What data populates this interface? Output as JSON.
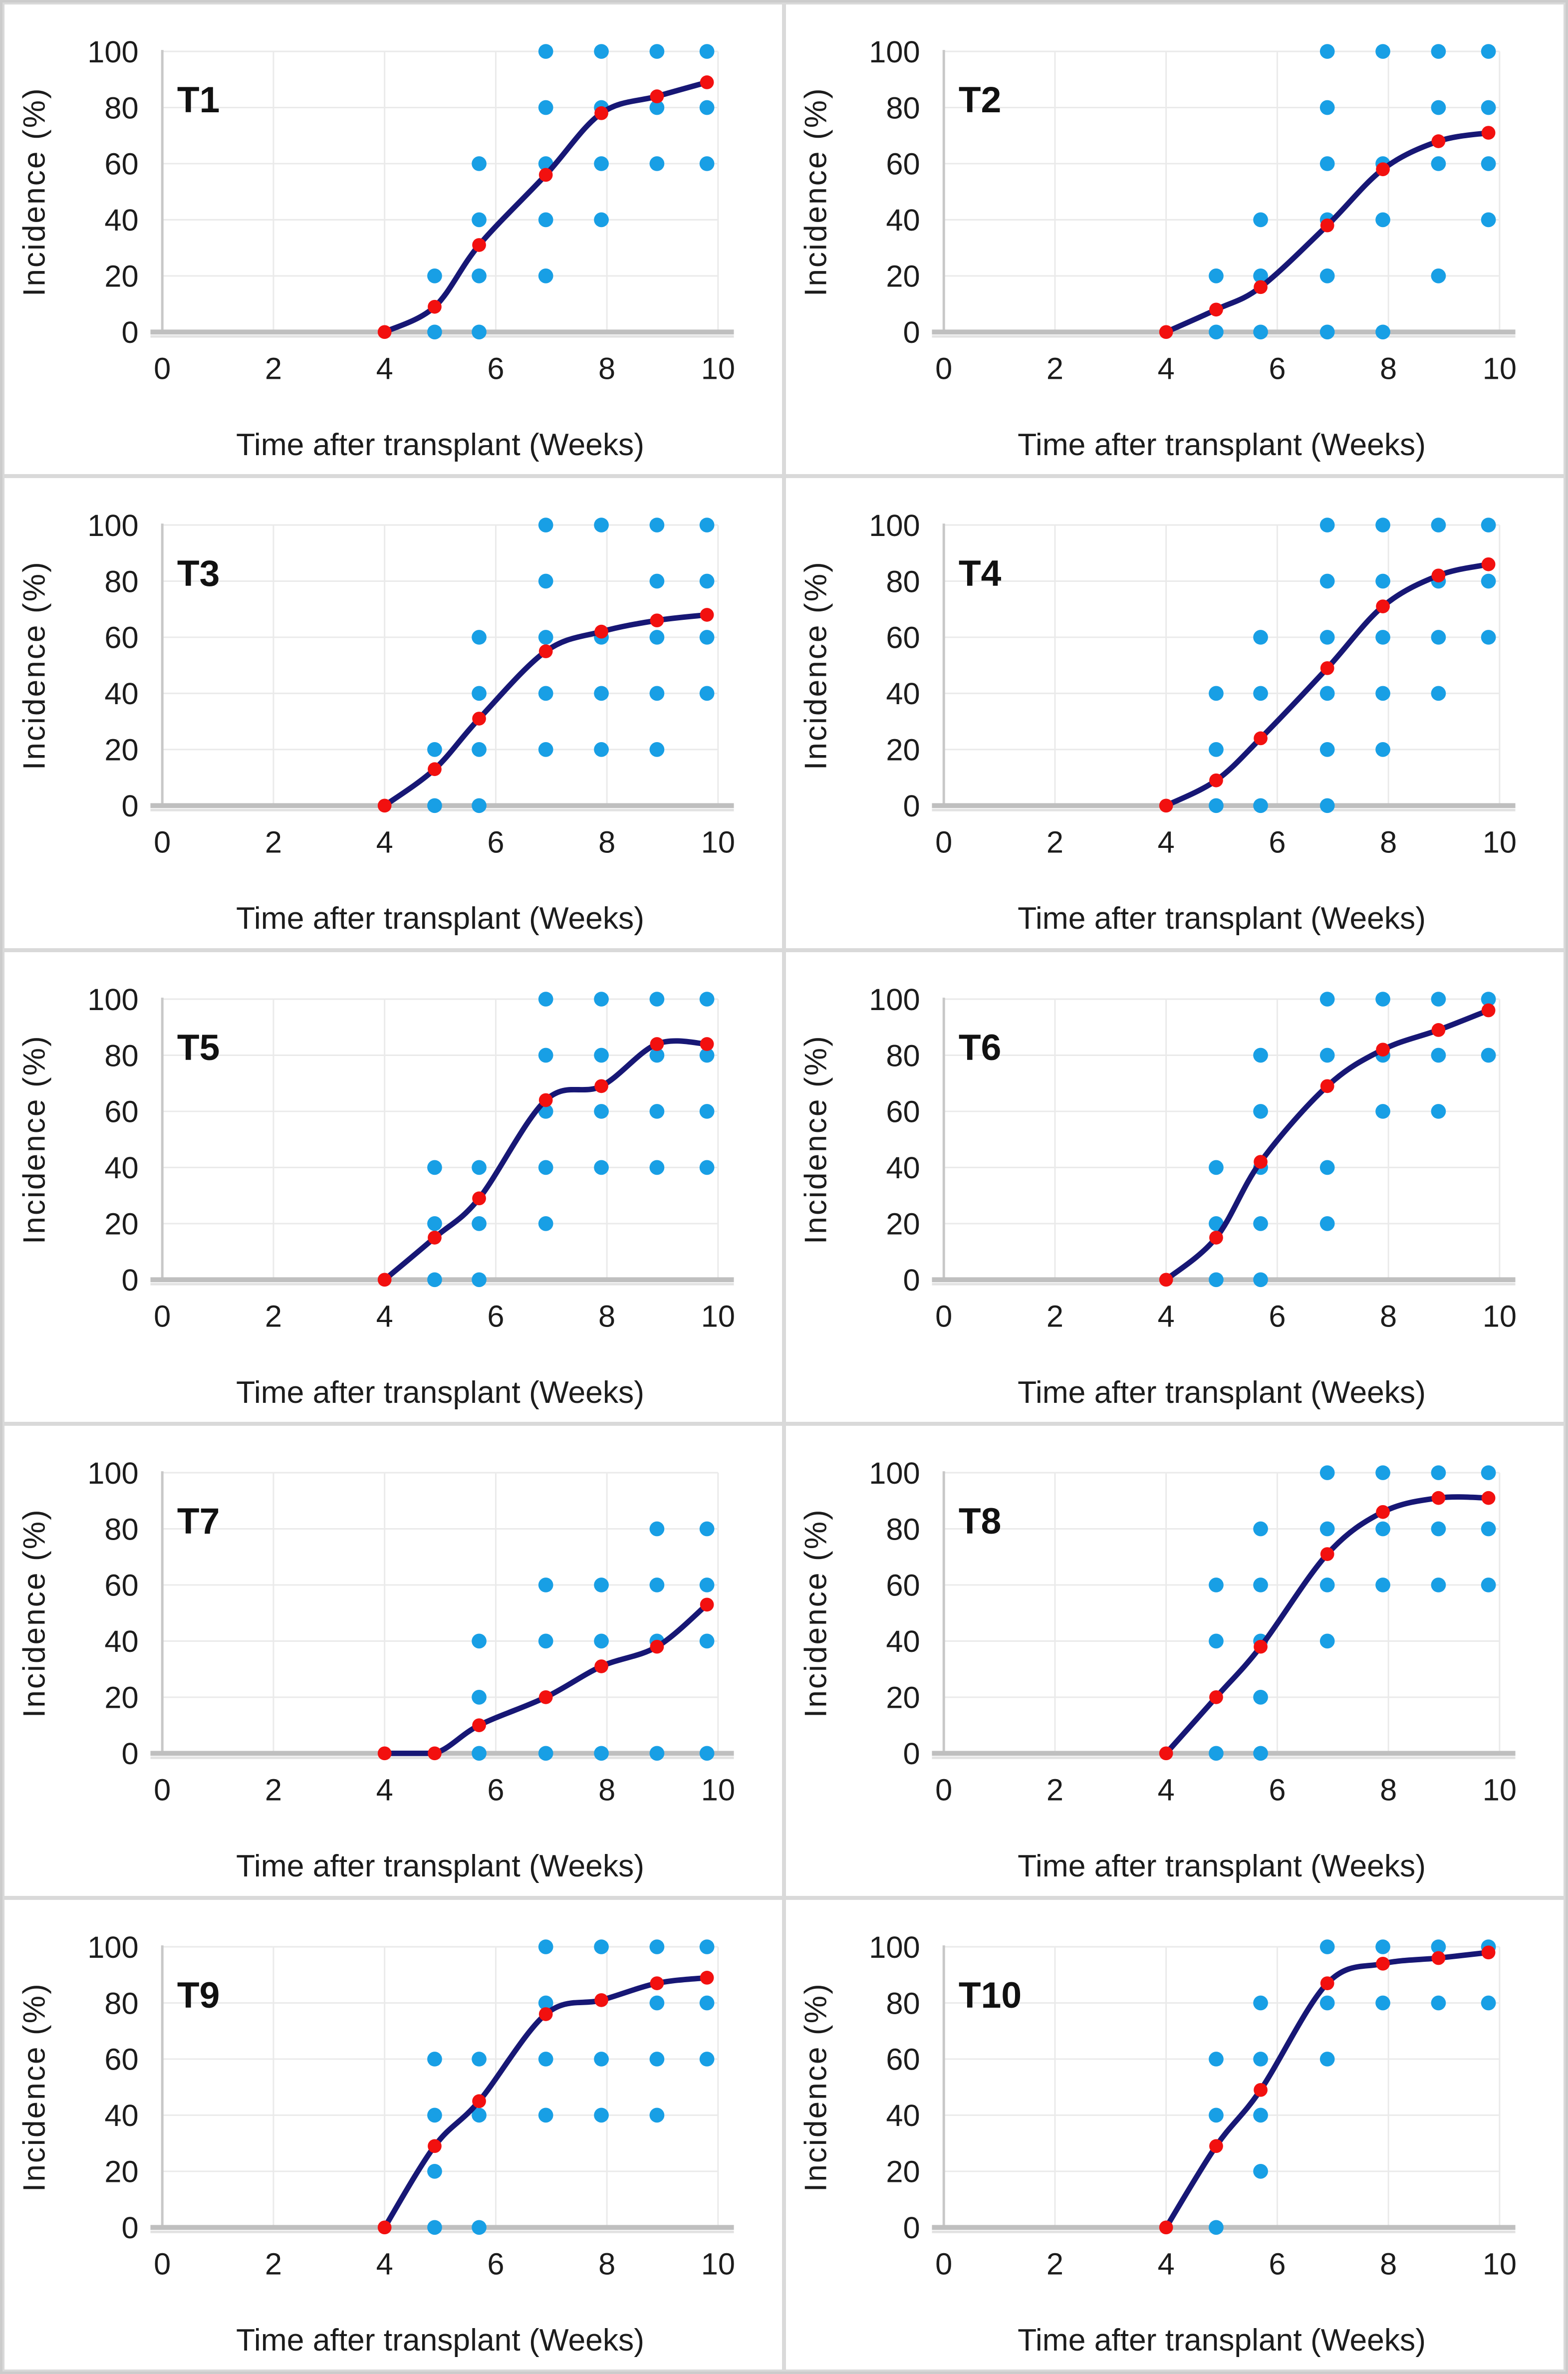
{
  "figure": {
    "colors": {
      "scatter_point": "#189fe5",
      "mean_point": "#f2100f",
      "fit_line": "#171775",
      "gridline": "#eaeaea",
      "y_axis_line": "#c8c8c8",
      "x_axis_bar": "#bfbfbf",
      "x_axis_bar_shadow": "#e2e2e2",
      "panel_border": "#d9d9d9",
      "text": "#1c1c1c"
    }
  },
  "chart_data": {
    "type": "scatter",
    "xlabel": "Time after transplant (Weeks)",
    "ylabel": "Incidence (%)",
    "xlim": [
      0,
      10
    ],
    "ylim": [
      0,
      100
    ],
    "x_ticks": [
      0,
      2,
      4,
      6,
      8,
      10
    ],
    "y_ticks": [
      0,
      20,
      40,
      60,
      80,
      100
    ],
    "grid": true,
    "legend": "none",
    "series_description": {
      "blue_points": "individual replicate incidence observations",
      "red_points": "mean incidence",
      "navy_line": "fitted smooth curve through means"
    },
    "mean_x": [
      4.0,
      4.9,
      5.7,
      6.9,
      7.9,
      8.9,
      9.8
    ],
    "panels": [
      {
        "title": "T1",
        "mean_y": [
          0,
          9,
          31,
          56,
          78,
          84,
          89
        ],
        "points": [
          [
            4.9,
            0
          ],
          [
            4.9,
            20
          ],
          [
            5.7,
            0
          ],
          [
            5.7,
            20
          ],
          [
            5.7,
            40
          ],
          [
            5.7,
            60
          ],
          [
            6.9,
            20
          ],
          [
            6.9,
            40
          ],
          [
            6.9,
            60
          ],
          [
            6.9,
            80
          ],
          [
            6.9,
            100
          ],
          [
            7.9,
            40
          ],
          [
            7.9,
            60
          ],
          [
            7.9,
            80
          ],
          [
            7.9,
            100
          ],
          [
            8.9,
            60
          ],
          [
            8.9,
            80
          ],
          [
            8.9,
            100
          ],
          [
            9.8,
            60
          ],
          [
            9.8,
            80
          ],
          [
            9.8,
            100
          ]
        ]
      },
      {
        "title": "T2",
        "mean_y": [
          0,
          8,
          16,
          38,
          58,
          68,
          71
        ],
        "points": [
          [
            4.9,
            0
          ],
          [
            4.9,
            20
          ],
          [
            5.7,
            0
          ],
          [
            5.7,
            20
          ],
          [
            5.7,
            40
          ],
          [
            6.9,
            0
          ],
          [
            6.9,
            20
          ],
          [
            6.9,
            40
          ],
          [
            6.9,
            60
          ],
          [
            6.9,
            80
          ],
          [
            6.9,
            100
          ],
          [
            7.9,
            0
          ],
          [
            7.9,
            40
          ],
          [
            7.9,
            60
          ],
          [
            7.9,
            100
          ],
          [
            8.9,
            20
          ],
          [
            8.9,
            60
          ],
          [
            8.9,
            80
          ],
          [
            8.9,
            100
          ],
          [
            9.8,
            40
          ],
          [
            9.8,
            60
          ],
          [
            9.8,
            80
          ],
          [
            9.8,
            100
          ]
        ]
      },
      {
        "title": "T3",
        "mean_y": [
          0,
          13,
          31,
          55,
          62,
          66,
          68
        ],
        "points": [
          [
            4.9,
            0
          ],
          [
            4.9,
            20
          ],
          [
            5.7,
            0
          ],
          [
            5.7,
            20
          ],
          [
            5.7,
            40
          ],
          [
            5.7,
            60
          ],
          [
            6.9,
            20
          ],
          [
            6.9,
            40
          ],
          [
            6.9,
            60
          ],
          [
            6.9,
            80
          ],
          [
            6.9,
            100
          ],
          [
            7.9,
            20
          ],
          [
            7.9,
            40
          ],
          [
            7.9,
            60
          ],
          [
            7.9,
            100
          ],
          [
            8.9,
            20
          ],
          [
            8.9,
            40
          ],
          [
            8.9,
            60
          ],
          [
            8.9,
            80
          ],
          [
            8.9,
            100
          ],
          [
            9.8,
            40
          ],
          [
            9.8,
            60
          ],
          [
            9.8,
            80
          ],
          [
            9.8,
            100
          ]
        ]
      },
      {
        "title": "T4",
        "mean_y": [
          0,
          9,
          24,
          49,
          71,
          82,
          86
        ],
        "points": [
          [
            4.9,
            0
          ],
          [
            4.9,
            20
          ],
          [
            4.9,
            40
          ],
          [
            5.7,
            0
          ],
          [
            5.7,
            40
          ],
          [
            5.7,
            60
          ],
          [
            6.9,
            0
          ],
          [
            6.9,
            20
          ],
          [
            6.9,
            40
          ],
          [
            6.9,
            60
          ],
          [
            6.9,
            80
          ],
          [
            6.9,
            100
          ],
          [
            7.9,
            20
          ],
          [
            7.9,
            40
          ],
          [
            7.9,
            60
          ],
          [
            7.9,
            80
          ],
          [
            7.9,
            100
          ],
          [
            8.9,
            40
          ],
          [
            8.9,
            60
          ],
          [
            8.9,
            80
          ],
          [
            8.9,
            100
          ],
          [
            9.8,
            60
          ],
          [
            9.8,
            80
          ],
          [
            9.8,
            100
          ]
        ]
      },
      {
        "title": "T5",
        "mean_y": [
          0,
          15,
          29,
          64,
          69,
          84,
          84
        ],
        "points": [
          [
            4.9,
            0
          ],
          [
            4.9,
            20
          ],
          [
            4.9,
            40
          ],
          [
            5.7,
            0
          ],
          [
            5.7,
            20
          ],
          [
            5.7,
            40
          ],
          [
            6.9,
            20
          ],
          [
            6.9,
            40
          ],
          [
            6.9,
            60
          ],
          [
            6.9,
            80
          ],
          [
            6.9,
            100
          ],
          [
            7.9,
            40
          ],
          [
            7.9,
            60
          ],
          [
            7.9,
            80
          ],
          [
            7.9,
            100
          ],
          [
            8.9,
            40
          ],
          [
            8.9,
            60
          ],
          [
            8.9,
            80
          ],
          [
            8.9,
            100
          ],
          [
            9.8,
            40
          ],
          [
            9.8,
            60
          ],
          [
            9.8,
            80
          ],
          [
            9.8,
            100
          ]
        ]
      },
      {
        "title": "T6",
        "mean_y": [
          0,
          15,
          42,
          69,
          82,
          89,
          96
        ],
        "points": [
          [
            4.9,
            0
          ],
          [
            4.9,
            20
          ],
          [
            4.9,
            40
          ],
          [
            5.7,
            0
          ],
          [
            5.7,
            20
          ],
          [
            5.7,
            40
          ],
          [
            5.7,
            60
          ],
          [
            5.7,
            80
          ],
          [
            6.9,
            20
          ],
          [
            6.9,
            40
          ],
          [
            6.9,
            80
          ],
          [
            6.9,
            100
          ],
          [
            7.9,
            60
          ],
          [
            7.9,
            80
          ],
          [
            7.9,
            100
          ],
          [
            8.9,
            60
          ],
          [
            8.9,
            80
          ],
          [
            8.9,
            100
          ],
          [
            9.8,
            80
          ],
          [
            9.8,
            100
          ]
        ]
      },
      {
        "title": "T7",
        "mean_y": [
          0,
          0,
          10,
          20,
          31,
          38,
          53
        ],
        "points": [
          [
            5.7,
            0
          ],
          [
            5.7,
            20
          ],
          [
            5.7,
            40
          ],
          [
            6.9,
            0
          ],
          [
            6.9,
            40
          ],
          [
            6.9,
            60
          ],
          [
            7.9,
            0
          ],
          [
            7.9,
            40
          ],
          [
            7.9,
            60
          ],
          [
            8.9,
            0
          ],
          [
            8.9,
            40
          ],
          [
            8.9,
            60
          ],
          [
            8.9,
            80
          ],
          [
            9.8,
            0
          ],
          [
            9.8,
            40
          ],
          [
            9.8,
            60
          ],
          [
            9.8,
            80
          ]
        ]
      },
      {
        "title": "T8",
        "mean_y": [
          0,
          20,
          38,
          71,
          86,
          91,
          91
        ],
        "points": [
          [
            4.9,
            0
          ],
          [
            4.9,
            40
          ],
          [
            4.9,
            60
          ],
          [
            5.7,
            0
          ],
          [
            5.7,
            20
          ],
          [
            5.7,
            40
          ],
          [
            5.7,
            60
          ],
          [
            5.7,
            80
          ],
          [
            6.9,
            40
          ],
          [
            6.9,
            60
          ],
          [
            6.9,
            80
          ],
          [
            6.9,
            100
          ],
          [
            7.9,
            60
          ],
          [
            7.9,
            80
          ],
          [
            7.9,
            100
          ],
          [
            8.9,
            60
          ],
          [
            8.9,
            80
          ],
          [
            8.9,
            100
          ],
          [
            9.8,
            60
          ],
          [
            9.8,
            80
          ],
          [
            9.8,
            100
          ]
        ]
      },
      {
        "title": "T9",
        "mean_y": [
          0,
          29,
          45,
          76,
          81,
          87,
          89
        ],
        "points": [
          [
            4.9,
            0
          ],
          [
            4.9,
            20
          ],
          [
            4.9,
            40
          ],
          [
            4.9,
            60
          ],
          [
            5.7,
            0
          ],
          [
            5.7,
            40
          ],
          [
            5.7,
            60
          ],
          [
            6.9,
            40
          ],
          [
            6.9,
            60
          ],
          [
            6.9,
            80
          ],
          [
            6.9,
            100
          ],
          [
            7.9,
            40
          ],
          [
            7.9,
            60
          ],
          [
            7.9,
            100
          ],
          [
            8.9,
            40
          ],
          [
            8.9,
            60
          ],
          [
            8.9,
            80
          ],
          [
            8.9,
            100
          ],
          [
            9.8,
            60
          ],
          [
            9.8,
            80
          ],
          [
            9.8,
            100
          ]
        ]
      },
      {
        "title": "T10",
        "mean_y": [
          0,
          29,
          49,
          87,
          94,
          96,
          98
        ],
        "points": [
          [
            4.9,
            0
          ],
          [
            4.9,
            40
          ],
          [
            4.9,
            60
          ],
          [
            5.7,
            20
          ],
          [
            5.7,
            40
          ],
          [
            5.7,
            60
          ],
          [
            5.7,
            80
          ],
          [
            6.9,
            60
          ],
          [
            6.9,
            80
          ],
          [
            6.9,
            100
          ],
          [
            7.9,
            80
          ],
          [
            7.9,
            100
          ],
          [
            8.9,
            80
          ],
          [
            8.9,
            100
          ],
          [
            9.8,
            80
          ],
          [
            9.8,
            100
          ]
        ]
      }
    ]
  }
}
